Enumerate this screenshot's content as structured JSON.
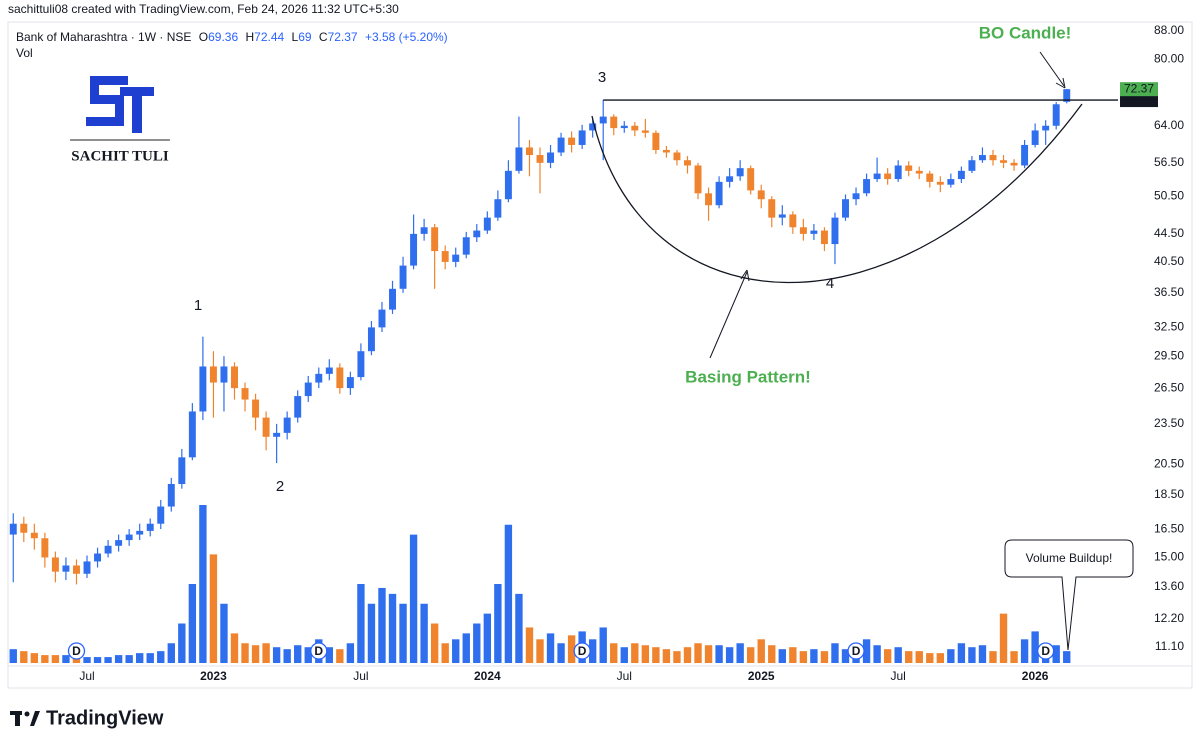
{
  "header": "sachittuli08 created with TradingView.com, Feb 24, 2026 11:32 UTC+5:30",
  "logo_name": "SACHIT TULI",
  "footer": "TradingView",
  "chart_data": {
    "type": "candlestick",
    "title": "Bank of Maharashtra · 1W · NSE",
    "ohlc_labels": [
      "O",
      "H",
      "L",
      "C"
    ],
    "change": "+3.58 (+5.20%)",
    "volume_label": "Vol",
    "categories": [
      null,
      null,
      null,
      null,
      null,
      null,
      null,
      "Jul",
      null,
      null,
      null,
      null,
      null,
      null,
      null,
      null,
      null,
      null,
      null,
      "2023",
      null,
      null,
      null,
      null,
      null,
      null,
      null,
      null,
      null,
      null,
      null,
      null,
      null,
      "Jul",
      null,
      null,
      null,
      null,
      null,
      null,
      null,
      null,
      null,
      null,
      null,
      "2024",
      null,
      null,
      null,
      null,
      null,
      null,
      null,
      null,
      null,
      null,
      null,
      null,
      "Jul",
      null,
      null,
      null,
      null,
      null,
      null,
      null,
      null,
      null,
      null,
      null,
      null,
      "2025",
      null,
      null,
      null,
      null,
      null,
      null,
      null,
      null,
      null,
      null,
      null,
      null,
      "Jul",
      null,
      null,
      null,
      null,
      null,
      null,
      null,
      null,
      null,
      null,
      null,
      null,
      "2026",
      null,
      null,
      null
    ],
    "candles": [
      [
        16.2,
        17.4,
        13.8,
        16.8
      ],
      [
        16.8,
        17.2,
        15.8,
        16.3
      ],
      [
        16.3,
        16.8,
        15.4,
        16.0
      ],
      [
        16.0,
        16.3,
        14.5,
        15.0
      ],
      [
        15.0,
        15.3,
        13.8,
        14.3
      ],
      [
        14.3,
        15.0,
        13.9,
        14.6
      ],
      [
        14.6,
        14.9,
        13.7,
        14.2
      ],
      [
        14.2,
        15.1,
        14.0,
        14.8
      ],
      [
        14.8,
        15.5,
        14.5,
        15.2
      ],
      [
        15.2,
        15.9,
        15.0,
        15.6
      ],
      [
        15.6,
        16.2,
        15.3,
        15.9
      ],
      [
        15.9,
        16.5,
        15.6,
        16.2
      ],
      [
        16.2,
        16.8,
        15.9,
        16.4
      ],
      [
        16.4,
        17.1,
        16.1,
        16.8
      ],
      [
        16.8,
        18.2,
        16.5,
        17.8
      ],
      [
        17.8,
        19.6,
        17.5,
        19.2
      ],
      [
        19.2,
        21.6,
        18.9,
        21.0
      ],
      [
        21.0,
        25.2,
        20.8,
        24.5
      ],
      [
        24.5,
        31.5,
        23.8,
        28.5
      ],
      [
        28.5,
        30.0,
        24.0,
        27.0
      ],
      [
        27.0,
        29.5,
        24.5,
        28.5
      ],
      [
        28.5,
        28.9,
        25.5,
        26.5
      ],
      [
        26.5,
        27.0,
        24.5,
        25.5
      ],
      [
        25.5,
        26.0,
        23.0,
        24.0
      ],
      [
        24.0,
        24.5,
        21.5,
        22.5
      ],
      [
        22.5,
        23.5,
        20.6,
        22.8
      ],
      [
        22.8,
        24.5,
        22.3,
        24.0
      ],
      [
        24.0,
        26.3,
        23.6,
        25.8
      ],
      [
        25.8,
        27.6,
        25.3,
        27.0
      ],
      [
        27.0,
        28.4,
        26.5,
        27.8
      ],
      [
        27.8,
        29.2,
        27.2,
        28.4
      ],
      [
        28.4,
        28.8,
        26.0,
        26.5
      ],
      [
        26.5,
        28.0,
        25.9,
        27.5
      ],
      [
        27.5,
        30.8,
        27.2,
        30.0
      ],
      [
        30.0,
        33.2,
        29.6,
        32.5
      ],
      [
        32.5,
        35.4,
        32.0,
        34.5
      ],
      [
        34.5,
        38.0,
        34.0,
        37.0
      ],
      [
        37.0,
        41.2,
        36.5,
        40.0
      ],
      [
        40.0,
        47.5,
        39.5,
        44.5
      ],
      [
        44.5,
        46.8,
        43.5,
        45.5
      ],
      [
        45.5,
        46.0,
        37.0,
        42.0
      ],
      [
        42.0,
        42.8,
        39.5,
        40.5
      ],
      [
        40.5,
        42.5,
        39.8,
        41.5
      ],
      [
        41.5,
        44.8,
        41.0,
        44.0
      ],
      [
        44.0,
        46.0,
        43.3,
        45.0
      ],
      [
        45.0,
        48.0,
        44.5,
        47.0
      ],
      [
        47.0,
        51.5,
        46.5,
        50.0
      ],
      [
        50.0,
        57.0,
        49.5,
        55.0
      ],
      [
        55.0,
        66.0,
        54.5,
        59.5
      ],
      [
        59.5,
        61.0,
        54.0,
        58.0
      ],
      [
        58.0,
        59.5,
        51.0,
        56.5
      ],
      [
        56.5,
        60.0,
        55.5,
        58.5
      ],
      [
        58.5,
        62.5,
        57.8,
        61.5
      ],
      [
        61.5,
        62.8,
        58.5,
        60.0
      ],
      [
        60.0,
        64.2,
        59.2,
        63.0
      ],
      [
        63.0,
        65.5,
        61.5,
        64.5
      ],
      [
        64.5,
        69.8,
        57.0,
        66.0
      ],
      [
        66.0,
        66.5,
        62.0,
        63.5
      ],
      [
        63.5,
        65.0,
        62.5,
        64.0
      ],
      [
        64.0,
        64.8,
        61.8,
        63.0
      ],
      [
        63.0,
        65.5,
        61.5,
        62.5
      ],
      [
        62.5,
        63.0,
        58.2,
        59.0
      ],
      [
        59.0,
        59.8,
        57.5,
        58.5
      ],
      [
        58.5,
        59.0,
        56.0,
        57.0
      ],
      [
        57.0,
        57.8,
        54.5,
        56.0
      ],
      [
        56.0,
        56.5,
        50.0,
        51.0
      ],
      [
        51.0,
        52.0,
        46.5,
        49.0
      ],
      [
        49.0,
        54.0,
        48.5,
        53.0
      ],
      [
        53.0,
        55.5,
        52.0,
        54.0
      ],
      [
        54.0,
        57.0,
        53.2,
        55.5
      ],
      [
        55.5,
        56.0,
        50.8,
        51.5
      ],
      [
        51.5,
        52.5,
        48.5,
        50.0
      ],
      [
        50.0,
        50.5,
        45.5,
        47.0
      ],
      [
        47.0,
        49.0,
        45.8,
        47.5
      ],
      [
        47.5,
        48.0,
        44.5,
        45.5
      ],
      [
        45.5,
        46.8,
        43.5,
        44.5
      ],
      [
        44.5,
        46.0,
        43.6,
        45.0
      ],
      [
        45.0,
        45.5,
        42.0,
        43.0
      ],
      [
        43.0,
        47.8,
        40.2,
        47.0
      ],
      [
        47.0,
        50.8,
        46.5,
        50.0
      ],
      [
        50.0,
        52.0,
        49.0,
        51.0
      ],
      [
        51.0,
        54.5,
        50.5,
        53.5
      ],
      [
        53.5,
        57.5,
        53.0,
        54.5
      ],
      [
        54.5,
        55.5,
        52.5,
        53.5
      ],
      [
        53.5,
        57.0,
        53.0,
        56.0
      ],
      [
        56.0,
        56.8,
        54.0,
        55.0
      ],
      [
        55.0,
        55.8,
        53.5,
        54.5
      ],
      [
        54.5,
        55.0,
        52.0,
        53.0
      ],
      [
        53.0,
        54.0,
        51.2,
        52.5
      ],
      [
        52.5,
        54.5,
        52.0,
        53.5
      ],
      [
        53.5,
        55.8,
        52.8,
        55.0
      ],
      [
        55.0,
        57.8,
        54.6,
        57.0
      ],
      [
        57.0,
        59.5,
        56.5,
        58.0
      ],
      [
        58.0,
        59.0,
        56.0,
        57.0
      ],
      [
        57.0,
        58.0,
        55.5,
        56.5
      ],
      [
        56.5,
        57.2,
        55.0,
        56.0
      ],
      [
        56.0,
        61.0,
        55.5,
        60.0
      ],
      [
        60.0,
        64.5,
        59.5,
        63.0
      ],
      [
        63.0,
        65.2,
        60.0,
        64.0
      ],
      [
        64.0,
        69.3,
        63.2,
        68.79
      ],
      [
        69.36,
        72.44,
        69.0,
        72.37
      ]
    ],
    "volume": [
      7,
      6,
      5,
      4,
      4,
      4,
      3,
      3,
      3,
      3,
      4,
      4,
      5,
      5,
      6,
      10,
      20,
      40,
      80,
      55,
      30,
      15,
      10,
      9,
      10,
      8,
      7,
      9,
      8,
      12,
      8,
      7,
      10,
      40,
      30,
      38,
      35,
      30,
      65,
      30,
      20,
      10,
      12,
      15,
      20,
      25,
      40,
      70,
      35,
      18,
      12,
      15,
      10,
      14,
      16,
      12,
      18,
      10,
      8,
      10,
      9,
      8,
      7,
      6,
      8,
      10,
      9,
      9,
      8,
      10,
      8,
      12,
      9,
      7,
      8,
      6,
      7,
      6,
      10,
      7,
      6,
      12,
      9,
      7,
      8,
      6,
      6,
      5,
      5,
      7,
      10,
      8,
      9,
      6,
      25,
      6,
      12,
      16,
      10,
      9,
      6
    ],
    "dividends": [
      null,
      null,
      null,
      null,
      null,
      null,
      "D",
      null,
      null,
      null,
      null,
      null,
      null,
      null,
      null,
      null,
      null,
      null,
      null,
      null,
      null,
      null,
      null,
      null,
      null,
      null,
      null,
      null,
      null,
      "D",
      null,
      null,
      null,
      null,
      null,
      null,
      null,
      null,
      null,
      null,
      null,
      null,
      null,
      null,
      null,
      null,
      null,
      null,
      null,
      null,
      null,
      null,
      null,
      null,
      "D",
      null,
      null,
      null,
      null,
      null,
      null,
      null,
      null,
      null,
      null,
      null,
      null,
      null,
      null,
      null,
      null,
      null,
      null,
      null,
      null,
      null,
      null,
      null,
      null,
      null,
      "D",
      null,
      null,
      null,
      null,
      null,
      null,
      null,
      null,
      null,
      null,
      null,
      null,
      null,
      null,
      null,
      null,
      null,
      "D",
      null,
      null
    ],
    "up_color": "#2f6fee",
    "down_color": "#f0832d",
    "last_price_color": "#4caf50",
    "log_y": true,
    "grid": false,
    "ylim": [
      10.45,
      90.7
    ],
    "yticks": [
      {
        "value": 11.1,
        "label": "11.10"
      },
      {
        "value": 12.2,
        "label": "12.20"
      },
      {
        "value": 13.6,
        "label": "13.60"
      },
      {
        "value": 15,
        "label": "15.00"
      },
      {
        "value": 16.5,
        "label": "16.50"
      },
      {
        "value": 18.5,
        "label": "18.50"
      },
      {
        "value": 20.5,
        "label": "20.50"
      },
      {
        "value": 23.5,
        "label": "23.50"
      },
      {
        "value": 26.5,
        "label": "26.50"
      },
      {
        "value": 29.5,
        "label": "29.50"
      },
      {
        "value": 32.5,
        "label": "32.50"
      },
      {
        "value": 36.5,
        "label": "36.50"
      },
      {
        "value": 40.5,
        "label": "40.50"
      },
      {
        "value": 44.5,
        "label": "44.50"
      },
      {
        "value": 50.5,
        "label": "50.50"
      },
      {
        "value": 56.5,
        "label": "56.50"
      },
      {
        "value": 64,
        "label": "64.00"
      },
      {
        "value": 80,
        "label": "80.00"
      },
      {
        "value": 88,
        "label": "88.00"
      }
    ],
    "breakout_level": 69.77,
    "annotations": {
      "p1": "1",
      "p2": "2",
      "p3": "3",
      "p4": "4",
      "bo": "BO Candle!",
      "basing": "Basing Pattern!",
      "volume": "Volume Buildup!"
    }
  }
}
